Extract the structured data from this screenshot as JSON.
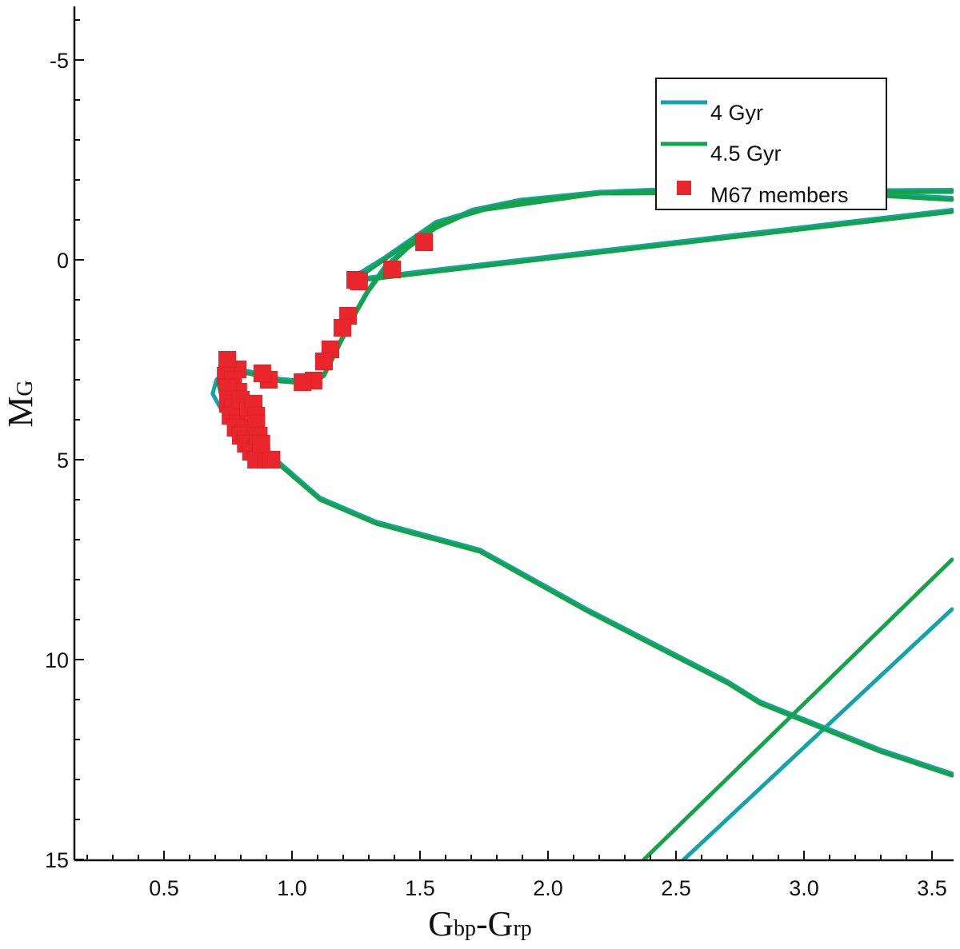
{
  "chart_data": {
    "type": "line",
    "title": "",
    "xlabel": {
      "parts": [
        "G",
        "bp",
        "-G",
        "rp"
      ]
    },
    "ylabel": {
      "main": "M",
      "sub": "G"
    },
    "xlim": [
      0.15,
      3.59
    ],
    "ylim": [
      15,
      -6.35
    ],
    "y_inverted": true,
    "grid": false,
    "legend_position": "top-right",
    "x_ticks": [
      "0.5",
      "1.0",
      "1.5",
      "2.0",
      "2.5",
      "3.0",
      "3.5"
    ],
    "x_tick_values": [
      0.5,
      1.0,
      1.5,
      2.0,
      2.5,
      3.0,
      3.5
    ],
    "y_ticks": [
      "-5",
      "0",
      "5",
      "10",
      "15"
    ],
    "y_tick_values": [
      -5,
      0,
      5,
      10,
      15
    ],
    "colors": {
      "teal": "#14a3a8",
      "green": "#14a24a",
      "red": "#e8262c"
    },
    "legend": [
      "4 Gyr",
      "4.5 Gyr",
      "M67 members"
    ],
    "series": [
      {
        "name": "4 Gyr",
        "type": "line",
        "color": "#14a3a8",
        "segments": [
          [
            [
              3.578,
              12.85
            ],
            [
              3.297,
              12.25
            ],
            [
              2.828,
              11.05
            ],
            [
              2.703,
              10.55
            ],
            [
              2.156,
              8.75
            ],
            [
              1.734,
              7.25
            ],
            [
              1.328,
              6.55
            ],
            [
              1.109,
              5.95
            ],
            [
              0.938,
              5.0
            ],
            [
              0.797,
              4.2
            ],
            [
              0.72,
              3.7
            ],
            [
              0.69,
              3.35
            ],
            [
              0.705,
              3.0
            ],
            [
              0.73,
              2.84
            ],
            [
              0.828,
              2.78
            ],
            [
              0.953,
              2.98
            ],
            [
              1.078,
              3.05
            ],
            [
              1.125,
              2.85
            ],
            [
              1.172,
              2.25
            ],
            [
              1.234,
              1.45
            ],
            [
              1.297,
              0.75
            ],
            [
              1.359,
              0.2
            ],
            [
              1.453,
              -0.35
            ],
            [
              1.563,
              -0.85
            ],
            [
              1.703,
              -1.25
            ],
            [
              1.891,
              -1.5
            ],
            [
              2.203,
              -1.7
            ],
            [
              2.516,
              -1.78
            ],
            [
              2.828,
              -1.78
            ],
            [
              3.141,
              -1.7
            ],
            [
              3.578,
              -1.55
            ]
          ],
          [
            [
              1.234,
              0.45
            ],
            [
              1.36,
              -0.05
            ],
            [
              1.563,
              -0.95
            ],
            [
              1.75,
              -1.3
            ],
            [
              2.2,
              -1.7
            ],
            [
              3.578,
              -1.75
            ]
          ],
          [
            [
              1.25,
              0.48
            ],
            [
              3.578,
              -1.25
            ]
          ],
          [
            [
              2.531,
              15.0
            ],
            [
              3.578,
              8.74
            ]
          ]
        ]
      },
      {
        "name": "4.5 Gyr",
        "type": "line",
        "color": "#14a24a",
        "segments": [
          [
            [
              3.578,
              12.9
            ],
            [
              3.297,
              12.3
            ],
            [
              2.828,
              11.1
            ],
            [
              2.703,
              10.6
            ],
            [
              2.156,
              8.8
            ],
            [
              1.734,
              7.3
            ],
            [
              1.328,
              6.6
            ],
            [
              1.109,
              6.0
            ],
            [
              0.938,
              5.06
            ],
            [
              0.797,
              4.3
            ],
            [
              0.728,
              3.5
            ],
            [
              0.712,
              3.1
            ],
            [
              0.74,
              2.88
            ],
            [
              0.828,
              2.84
            ],
            [
              0.953,
              3.04
            ],
            [
              1.078,
              3.1
            ],
            [
              1.125,
              2.9
            ],
            [
              1.172,
              2.3
            ],
            [
              1.234,
              1.5
            ],
            [
              1.297,
              0.8
            ],
            [
              1.359,
              0.26
            ],
            [
              1.453,
              -0.3
            ],
            [
              1.563,
              -0.8
            ],
            [
              1.703,
              -1.2
            ],
            [
              1.891,
              -1.46
            ],
            [
              2.203,
              -1.66
            ],
            [
              2.516,
              -1.74
            ],
            [
              2.828,
              -1.74
            ],
            [
              3.141,
              -1.66
            ],
            [
              3.578,
              -1.5
            ]
          ],
          [
            [
              1.247,
              0.5
            ],
            [
              1.36,
              0.0
            ],
            [
              1.563,
              -0.9
            ],
            [
              1.75,
              -1.25
            ],
            [
              2.2,
              -1.66
            ],
            [
              3.578,
              -1.7
            ]
          ],
          [
            [
              1.26,
              0.52
            ],
            [
              3.578,
              -1.2
            ]
          ],
          [
            [
              2.375,
              15.0
            ],
            [
              3.578,
              7.5
            ]
          ]
        ]
      },
      {
        "name": "M67 members",
        "type": "scatter",
        "color": "#e8262c",
        "points": [
          [
            1.516,
            -0.44
          ],
          [
            1.391,
            0.24
          ],
          [
            1.247,
            0.5
          ],
          [
            1.262,
            0.54
          ],
          [
            1.219,
            1.4
          ],
          [
            1.197,
            1.7
          ],
          [
            1.15,
            2.24
          ],
          [
            1.125,
            2.54
          ],
          [
            1.084,
            3.02
          ],
          [
            1.041,
            3.06
          ],
          [
            0.909,
            3.0
          ],
          [
            0.884,
            2.84
          ],
          [
            0.788,
            2.74
          ],
          [
            0.747,
            2.5
          ],
          [
            0.741,
            2.9
          ],
          [
            0.77,
            3.0
          ],
          [
            0.79,
            3.3
          ],
          [
            0.75,
            3.2
          ],
          [
            0.76,
            3.5
          ],
          [
            0.75,
            3.6
          ],
          [
            0.77,
            3.7
          ],
          [
            0.78,
            3.9
          ],
          [
            0.76,
            3.9
          ],
          [
            0.79,
            4.1
          ],
          [
            0.8,
            4.2
          ],
          [
            0.78,
            4.2
          ],
          [
            0.81,
            4.35
          ],
          [
            0.8,
            4.4
          ],
          [
            0.82,
            4.5
          ],
          [
            0.82,
            4.6
          ],
          [
            0.84,
            4.6
          ],
          [
            0.86,
            4.75
          ],
          [
            0.84,
            4.8
          ],
          [
            0.88,
            4.85
          ],
          [
            0.86,
            5.0
          ],
          [
            0.9,
            5.0
          ],
          [
            0.92,
            5.0
          ],
          [
            0.8,
            3.5
          ],
          [
            0.83,
            3.7
          ],
          [
            0.85,
            3.6
          ],
          [
            0.86,
            3.9
          ],
          [
            0.86,
            4.1
          ],
          [
            0.87,
            4.4
          ],
          [
            0.88,
            4.6
          ]
        ]
      }
    ]
  }
}
